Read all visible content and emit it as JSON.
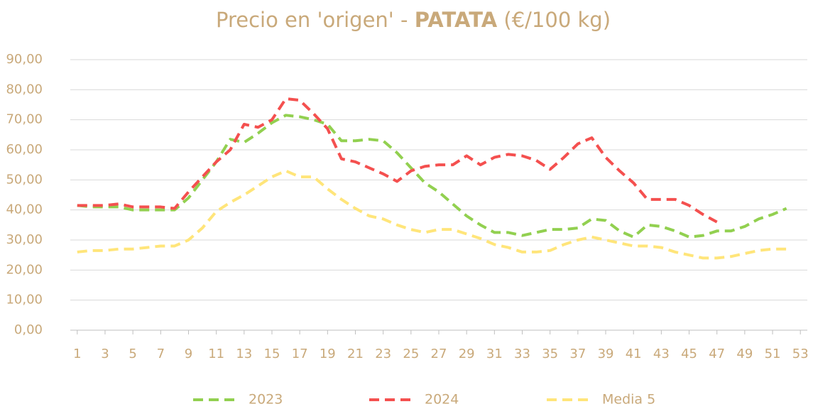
{
  "chart_data": {
    "type": "line",
    "title_parts": [
      {
        "text": "Precio en 'origen' - ",
        "bold": false
      },
      {
        "text": "PATATA",
        "bold": true
      },
      {
        "text": " (€/100 kg)",
        "bold": false
      }
    ],
    "x": [
      1,
      2,
      3,
      4,
      5,
      6,
      7,
      8,
      9,
      10,
      11,
      12,
      13,
      14,
      15,
      16,
      17,
      18,
      19,
      20,
      21,
      22,
      23,
      24,
      25,
      26,
      27,
      28,
      29,
      30,
      31,
      32,
      33,
      34,
      35,
      36,
      37,
      38,
      39,
      40,
      41,
      42,
      43,
      44,
      45,
      46,
      47,
      48,
      49,
      50,
      51,
      52
    ],
    "series": [
      {
        "name": "2023",
        "color": "#92d050",
        "values": [
          41.5,
          41,
          41,
          41,
          40,
          40,
          40,
          40,
          44,
          50,
          56,
          63.5,
          62.5,
          65.5,
          69,
          71.5,
          71,
          70,
          68.5,
          63,
          63,
          63.5,
          63,
          59,
          54,
          49,
          46,
          42,
          38,
          35,
          32.5,
          32.5,
          31.5,
          32.5,
          33.5,
          33.5,
          34,
          37,
          36.5,
          33,
          31,
          35,
          34.5,
          33,
          31,
          31.5,
          33,
          33,
          34.5,
          37,
          38.5,
          40.5
        ]
      },
      {
        "name": "2024",
        "color": "#f4504f",
        "values": [
          41.5,
          41.5,
          41.5,
          42,
          41,
          41,
          41,
          40.5,
          46,
          51,
          56,
          60,
          68.5,
          67.5,
          70,
          77,
          76.5,
          72,
          67,
          57,
          56,
          54,
          52,
          49.5,
          53,
          54.5,
          55,
          55,
          58,
          55,
          57.5,
          58.5,
          58,
          56.5,
          53.5,
          57.5,
          62,
          64,
          57.5,
          53,
          49,
          43.5,
          43.5,
          43.5,
          41.5,
          38.5,
          36,
          null,
          null,
          null,
          null,
          null
        ]
      },
      {
        "name": "Media 5",
        "color": "#ffe57a",
        "values": [
          26,
          26.5,
          26.5,
          27,
          27,
          27.5,
          28,
          28,
          30,
          34,
          39.5,
          42.5,
          45,
          48,
          51,
          53,
          51,
          51,
          47,
          43.5,
          40.5,
          38,
          37,
          35,
          33.5,
          32.5,
          33.5,
          33.5,
          32,
          30.5,
          28.5,
          27.5,
          26,
          26,
          26.5,
          28.5,
          30,
          31,
          30,
          29,
          28,
          28,
          27.5,
          26,
          25,
          24,
          24,
          24.5,
          25.5,
          26.5,
          27,
          27
        ]
      }
    ],
    "xlim": [
      0.5,
      53.5
    ],
    "xticks": [
      1,
      3,
      5,
      7,
      9,
      11,
      13,
      15,
      17,
      19,
      21,
      23,
      25,
      27,
      29,
      31,
      33,
      35,
      37,
      39,
      41,
      43,
      45,
      47,
      49,
      51,
      53
    ],
    "ylim": [
      0,
      90
    ],
    "yticks": [
      {
        "value": 0,
        "label": "0,00"
      },
      {
        "value": 10,
        "label": "10,00"
      },
      {
        "value": 20,
        "label": "20,00"
      },
      {
        "value": 30,
        "label": "30,00"
      },
      {
        "value": 40,
        "label": "40,00"
      },
      {
        "value": 50,
        "label": "50,00"
      },
      {
        "value": 60,
        "label": "60,00"
      },
      {
        "value": 70,
        "label": "70,00"
      },
      {
        "value": 80,
        "label": "80,00"
      },
      {
        "value": 90,
        "label": "90,00"
      }
    ],
    "grid": true,
    "legend": "bottom",
    "line_style": "dashed",
    "text_color": "#c9a97a"
  }
}
